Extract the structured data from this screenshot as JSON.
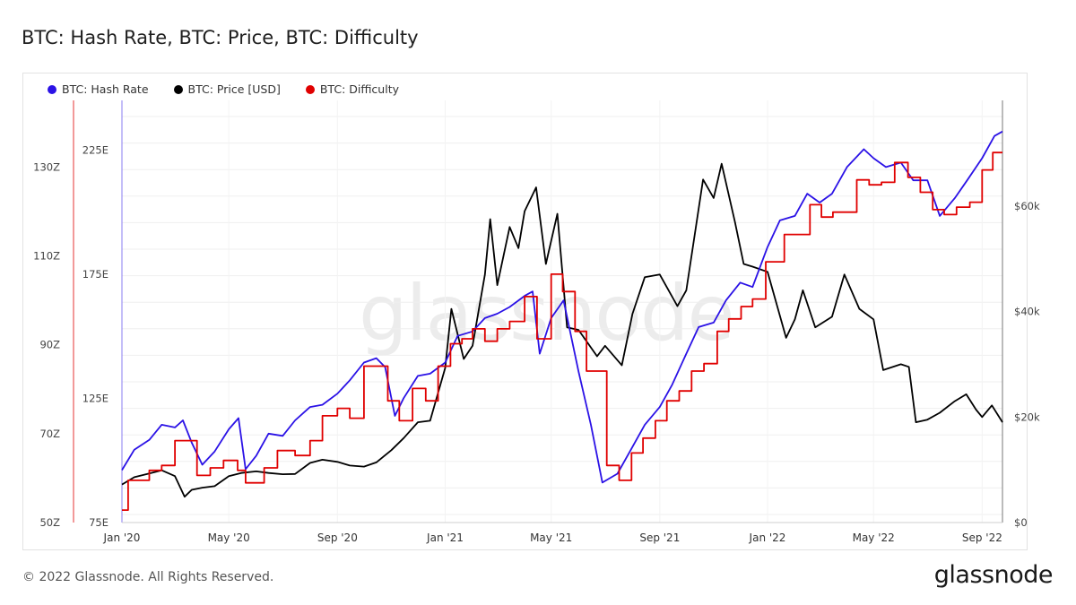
{
  "header": {
    "title": "BTC: Hash Rate, BTC: Price, BTC: Difficulty"
  },
  "footer": {
    "copyright": "© 2022 Glassnode. All Rights Reserved.",
    "logo": "glassnode"
  },
  "watermark": "glassnode",
  "chart_data": {
    "type": "line",
    "legend_placement": "top-left",
    "grid": true,
    "colors": {
      "hash_rate": "#2b12e6",
      "price": "#000000",
      "difficulty": "#e00000"
    },
    "x": {
      "domain": [
        "2020-01-01",
        "2022-09-24"
      ],
      "ticks": [
        {
          "date": "2020-01-01",
          "label": "Jan '20"
        },
        {
          "date": "2020-05-01",
          "label": "May '20"
        },
        {
          "date": "2020-09-01",
          "label": "Sep '20"
        },
        {
          "date": "2021-01-01",
          "label": "Jan '21"
        },
        {
          "date": "2021-05-01",
          "label": "May '21"
        },
        {
          "date": "2021-09-01",
          "label": "Sep '21"
        },
        {
          "date": "2022-01-01",
          "label": "Jan '22"
        },
        {
          "date": "2022-05-01",
          "label": "May '22"
        },
        {
          "date": "2022-09-01",
          "label": "Sep '22"
        }
      ]
    },
    "axes": {
      "hash_rate": {
        "range": [
          50,
          145
        ],
        "unit": "Z",
        "ticks": [
          {
            "v": 50,
            "label": "50Z"
          },
          {
            "v": 70,
            "label": "70Z"
          },
          {
            "v": 90,
            "label": "90Z"
          },
          {
            "v": 110,
            "label": "110Z"
          },
          {
            "v": 130,
            "label": "130Z"
          }
        ]
      },
      "difficulty": {
        "range": [
          75,
          245
        ],
        "unit": "E",
        "ticks": [
          {
            "v": 75,
            "label": "75E"
          },
          {
            "v": 125,
            "label": "125E"
          },
          {
            "v": 175,
            "label": "175E"
          },
          {
            "v": 225,
            "label": "225E"
          }
        ]
      },
      "price": {
        "range": [
          0,
          80000
        ],
        "unit": "USD",
        "ticks": [
          {
            "v": 0,
            "label": "$0"
          },
          {
            "v": 20000,
            "label": "$20k"
          },
          {
            "v": 40000,
            "label": "$40k"
          },
          {
            "v": 60000,
            "label": "$60k"
          }
        ]
      }
    },
    "series": [
      {
        "name": "BTC: Hash Rate",
        "axis": "hash_rate",
        "points": [
          [
            "2020-01-01",
            61.8
          ],
          [
            "2020-01-15",
            66.4
          ],
          [
            "2020-02-01",
            68.6
          ],
          [
            "2020-02-15",
            72.0
          ],
          [
            "2020-03-01",
            71.4
          ],
          [
            "2020-03-10",
            73.0
          ],
          [
            "2020-03-20",
            68.0
          ],
          [
            "2020-04-01",
            63.0
          ],
          [
            "2020-04-15",
            66.0
          ],
          [
            "2020-05-01",
            71.0
          ],
          [
            "2020-05-12",
            73.5
          ],
          [
            "2020-05-20",
            62.0
          ],
          [
            "2020-06-01",
            65.0
          ],
          [
            "2020-06-15",
            70.0
          ],
          [
            "2020-07-01",
            69.5
          ],
          [
            "2020-07-15",
            73.0
          ],
          [
            "2020-08-01",
            76.0
          ],
          [
            "2020-08-15",
            76.5
          ],
          [
            "2020-09-01",
            79.0
          ],
          [
            "2020-09-15",
            82.0
          ],
          [
            "2020-10-01",
            86.0
          ],
          [
            "2020-10-15",
            87.0
          ],
          [
            "2020-10-25",
            85.0
          ],
          [
            "2020-11-05",
            74.0
          ],
          [
            "2020-11-15",
            78.0
          ],
          [
            "2020-12-01",
            83.0
          ],
          [
            "2020-12-15",
            83.5
          ],
          [
            "2021-01-01",
            86.0
          ],
          [
            "2021-01-15",
            92.0
          ],
          [
            "2021-02-01",
            93.0
          ],
          [
            "2021-02-15",
            96.0
          ],
          [
            "2021-03-01",
            97.0
          ],
          [
            "2021-03-15",
            98.5
          ],
          [
            "2021-04-01",
            101.0
          ],
          [
            "2021-04-10",
            102.0
          ],
          [
            "2021-04-18",
            88.0
          ],
          [
            "2021-05-01",
            96.0
          ],
          [
            "2021-05-15",
            100.0
          ],
          [
            "2021-06-01",
            84.0
          ],
          [
            "2021-06-15",
            72.0
          ],
          [
            "2021-06-28",
            59.0
          ],
          [
            "2021-07-15",
            61.0
          ],
          [
            "2021-08-01",
            67.0
          ],
          [
            "2021-08-15",
            72.0
          ],
          [
            "2021-09-01",
            76.0
          ],
          [
            "2021-09-15",
            81.0
          ],
          [
            "2021-10-01",
            88.0
          ],
          [
            "2021-10-15",
            94.0
          ],
          [
            "2021-11-01",
            95.0
          ],
          [
            "2021-11-15",
            100.0
          ],
          [
            "2021-12-01",
            104.0
          ],
          [
            "2021-12-15",
            103.0
          ],
          [
            "2022-01-01",
            112.0
          ],
          [
            "2022-01-15",
            118.0
          ],
          [
            "2022-02-01",
            119.0
          ],
          [
            "2022-02-15",
            124.0
          ],
          [
            "2022-03-01",
            122.0
          ],
          [
            "2022-03-15",
            124.0
          ],
          [
            "2022-04-01",
            130.0
          ],
          [
            "2022-04-20",
            134.0
          ],
          [
            "2022-05-01",
            132.0
          ],
          [
            "2022-05-15",
            130.0
          ],
          [
            "2022-06-01",
            131.0
          ],
          [
            "2022-06-15",
            127.0
          ],
          [
            "2022-07-01",
            127.0
          ],
          [
            "2022-07-15",
            119.0
          ],
          [
            "2022-08-01",
            123.0
          ],
          [
            "2022-08-15",
            127.0
          ],
          [
            "2022-09-01",
            132.0
          ],
          [
            "2022-09-15",
            137.0
          ],
          [
            "2022-09-24",
            138.0
          ]
        ]
      },
      {
        "name": "BTC: Price [USD]",
        "axis": "price",
        "points": [
          [
            "2020-01-01",
            7200
          ],
          [
            "2020-01-15",
            8600
          ],
          [
            "2020-02-01",
            9300
          ],
          [
            "2020-02-15",
            9900
          ],
          [
            "2020-03-01",
            8800
          ],
          [
            "2020-03-12",
            4900
          ],
          [
            "2020-03-20",
            6200
          ],
          [
            "2020-04-01",
            6600
          ],
          [
            "2020-04-15",
            6900
          ],
          [
            "2020-05-01",
            8800
          ],
          [
            "2020-05-15",
            9400
          ],
          [
            "2020-06-01",
            9700
          ],
          [
            "2020-06-15",
            9400
          ],
          [
            "2020-07-01",
            9150
          ],
          [
            "2020-07-15",
            9200
          ],
          [
            "2020-08-01",
            11300
          ],
          [
            "2020-08-15",
            11900
          ],
          [
            "2020-09-01",
            11500
          ],
          [
            "2020-09-15",
            10800
          ],
          [
            "2020-10-01",
            10600
          ],
          [
            "2020-10-15",
            11400
          ],
          [
            "2020-11-01",
            13700
          ],
          [
            "2020-11-15",
            16000
          ],
          [
            "2020-12-01",
            19000
          ],
          [
            "2020-12-15",
            19300
          ],
          [
            "2021-01-01",
            29300
          ],
          [
            "2021-01-08",
            40500
          ],
          [
            "2021-01-22",
            31000
          ],
          [
            "2021-02-01",
            33500
          ],
          [
            "2021-02-15",
            47000
          ],
          [
            "2021-02-21",
            57500
          ],
          [
            "2021-03-01",
            45000
          ],
          [
            "2021-03-15",
            56000
          ],
          [
            "2021-03-25",
            52000
          ],
          [
            "2021-04-01",
            59000
          ],
          [
            "2021-04-14",
            63500
          ],
          [
            "2021-04-25",
            49000
          ],
          [
            "2021-05-08",
            58500
          ],
          [
            "2021-05-19",
            37000
          ],
          [
            "2021-06-01",
            36500
          ],
          [
            "2021-06-22",
            31500
          ],
          [
            "2021-07-01",
            33500
          ],
          [
            "2021-07-20",
            29800
          ],
          [
            "2021-08-01",
            39500
          ],
          [
            "2021-08-15",
            46500
          ],
          [
            "2021-09-01",
            47000
          ],
          [
            "2021-09-21",
            41000
          ],
          [
            "2021-10-01",
            44000
          ],
          [
            "2021-10-20",
            65000
          ],
          [
            "2021-11-01",
            61500
          ],
          [
            "2021-11-10",
            68000
          ],
          [
            "2021-11-25",
            57000
          ],
          [
            "2021-12-05",
            49000
          ],
          [
            "2021-12-15",
            48500
          ],
          [
            "2022-01-01",
            47500
          ],
          [
            "2022-01-22",
            35000
          ],
          [
            "2022-02-01",
            38500
          ],
          [
            "2022-02-10",
            44000
          ],
          [
            "2022-02-24",
            37000
          ],
          [
            "2022-03-15",
            39000
          ],
          [
            "2022-03-29",
            47000
          ],
          [
            "2022-04-15",
            40500
          ],
          [
            "2022-05-01",
            38500
          ],
          [
            "2022-05-12",
            28900
          ],
          [
            "2022-06-01",
            30000
          ],
          [
            "2022-06-10",
            29500
          ],
          [
            "2022-06-18",
            19000
          ],
          [
            "2022-07-01",
            19500
          ],
          [
            "2022-07-15",
            20800
          ],
          [
            "2022-08-01",
            23000
          ],
          [
            "2022-08-14",
            24300
          ],
          [
            "2022-08-25",
            21400
          ],
          [
            "2022-09-01",
            20000
          ],
          [
            "2022-09-12",
            22200
          ],
          [
            "2022-09-24",
            19000
          ]
        ]
      },
      {
        "name": "BTC: Difficulty",
        "axis": "difficulty",
        "step": true,
        "points": [
          [
            "2020-01-01",
            80.0
          ],
          [
            "2020-01-08",
            92.0
          ],
          [
            "2020-02-01",
            96.0
          ],
          [
            "2020-02-15",
            98.0
          ],
          [
            "2020-03-01",
            108.0
          ],
          [
            "2020-03-26",
            94.0
          ],
          [
            "2020-04-10",
            97.0
          ],
          [
            "2020-04-25",
            100.0
          ],
          [
            "2020-05-11",
            96.0
          ],
          [
            "2020-05-20",
            91.0
          ],
          [
            "2020-06-10",
            97.0
          ],
          [
            "2020-06-25",
            104.0
          ],
          [
            "2020-07-15",
            102.0
          ],
          [
            "2020-08-01",
            108.0
          ],
          [
            "2020-08-15",
            118.0
          ],
          [
            "2020-09-01",
            121.0
          ],
          [
            "2020-09-15",
            117.0
          ],
          [
            "2020-10-01",
            138.0
          ],
          [
            "2020-10-28",
            124.0
          ],
          [
            "2020-11-10",
            116.0
          ],
          [
            "2020-11-25",
            129.0
          ],
          [
            "2020-12-10",
            124.0
          ],
          [
            "2020-12-24",
            138.0
          ],
          [
            "2021-01-07",
            147.0
          ],
          [
            "2021-01-20",
            149.0
          ],
          [
            "2021-02-01",
            153.0
          ],
          [
            "2021-02-15",
            148.0
          ],
          [
            "2021-03-01",
            153.0
          ],
          [
            "2021-03-15",
            156.0
          ],
          [
            "2021-04-01",
            166.0
          ],
          [
            "2021-04-15",
            149.0
          ],
          [
            "2021-05-01",
            175.0
          ],
          [
            "2021-05-14",
            168.0
          ],
          [
            "2021-05-28",
            152.0
          ],
          [
            "2021-06-10",
            136.0
          ],
          [
            "2021-07-03",
            98.0
          ],
          [
            "2021-07-17",
            92.0
          ],
          [
            "2021-07-31",
            103.0
          ],
          [
            "2021-08-13",
            109.0
          ],
          [
            "2021-08-27",
            116.0
          ],
          [
            "2021-09-09",
            124.0
          ],
          [
            "2021-09-23",
            128.0
          ],
          [
            "2021-10-07",
            136.0
          ],
          [
            "2021-10-21",
            139.0
          ],
          [
            "2021-11-05",
            152.0
          ],
          [
            "2021-11-18",
            157.0
          ],
          [
            "2021-12-02",
            162.0
          ],
          [
            "2021-12-15",
            165.0
          ],
          [
            "2021-12-30",
            180.0
          ],
          [
            "2022-01-20",
            191.0
          ],
          [
            "2022-02-18",
            203.0
          ],
          [
            "2022-03-03",
            198.0
          ],
          [
            "2022-03-16",
            200.0
          ],
          [
            "2022-03-29",
            200.0
          ],
          [
            "2022-04-12",
            213.0
          ],
          [
            "2022-04-26",
            211.0
          ],
          [
            "2022-05-10",
            212.0
          ],
          [
            "2022-05-25",
            220.0
          ],
          [
            "2022-06-09",
            214.0
          ],
          [
            "2022-06-23",
            208.0
          ],
          [
            "2022-07-07",
            201.0
          ],
          [
            "2022-07-20",
            199.0
          ],
          [
            "2022-08-03",
            202.0
          ],
          [
            "2022-08-18",
            204.0
          ],
          [
            "2022-09-01",
            217.0
          ],
          [
            "2022-09-13",
            224.0
          ]
        ]
      }
    ]
  }
}
